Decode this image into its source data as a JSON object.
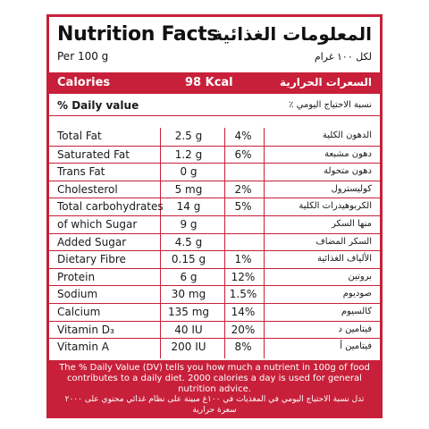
{
  "header": {
    "title_en": "Nutrition Facts",
    "per_en": "Per 100 g",
    "title_ar": "المعلومات الغذائية",
    "per_ar": "لكل ١٠٠ غرام"
  },
  "calories": {
    "label_en": "Calories",
    "value": "98 Kcal",
    "label_ar": "السعرات الحرارية"
  },
  "daily_value": {
    "label_en": "% Daily value",
    "label_ar": "نسبة الاحتياج اليومي ٪"
  },
  "nutrients": [
    {
      "name": "Total Fat",
      "amount": "2.5  g",
      "dv": "4%",
      "name_ar": "الدهون الكلية"
    },
    {
      "name": "Saturated Fat",
      "amount": "1.2  g",
      "dv": "6%",
      "name_ar": "دهون مشبعة"
    },
    {
      "name": "Trans Fat",
      "amount": "0 g",
      "dv": "",
      "name_ar": "دهون متحولة"
    },
    {
      "name": "Cholesterol",
      "amount": "5 mg",
      "dv": "2%",
      "name_ar": "كوليسترول"
    },
    {
      "name": "Total carbohydrates",
      "amount": "14 g",
      "dv": "5%",
      "name_ar": "الكربوهيدرات الكلية"
    },
    {
      "name": "of which Sugar",
      "amount": "9 g",
      "dv": "",
      "name_ar": "منها السكر"
    },
    {
      "name": "Added Sugar",
      "amount": "4.5 g",
      "dv": "",
      "name_ar": "السكر المضاف"
    },
    {
      "name": "Dietary Fibre",
      "amount": "0.15 g",
      "dv": "1%",
      "name_ar": "الألياف الغذائية"
    },
    {
      "name": "Protein",
      "amount": "6 g",
      "dv": "12%",
      "name_ar": "بروتين"
    },
    {
      "name": "Sodium",
      "amount": "30 mg",
      "dv": "1.5%",
      "name_ar": "صوديوم"
    },
    {
      "name": "Calcium",
      "amount": "135 mg",
      "dv": "14%",
      "name_ar": "كالسيوم"
    },
    {
      "name": "Vitamin D₃",
      "amount": "40 IU",
      "dv": "20%",
      "name_ar": "فيتامين د"
    },
    {
      "name": "Vitamin A",
      "amount": "200 IU",
      "dv": "8%",
      "name_ar": "فيتامين أ"
    }
  ],
  "footer": {
    "text_en": "The % Daily Value (DV) tells you how much a nutrient in 100g of food contributes to a daily diet. 2000 calories a day is used for general nutrition advice.",
    "text_ar": "تدل نسبة الاحتياج اليومي في المغذيات في ١٠٠غ مبينة على نظام غذائي محتوي على ٢٠٠٠ سعرة حرارية"
  },
  "colors": {
    "accent": "#c8203a",
    "text": "#1a1a1a",
    "background": "#ffffff"
  }
}
